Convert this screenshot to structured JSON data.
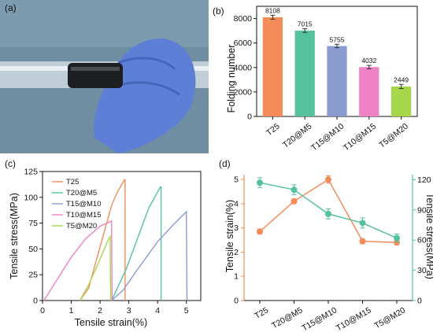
{
  "panels": {
    "a_label": "(a)",
    "b_label": "(b)",
    "c_label": "(c)",
    "d_label": "(d)"
  },
  "photo": {
    "background": "#6f8ea2",
    "glove_color": "#5d7fd6",
    "tube_color": "#cfd9e0",
    "roller_color": "#1d1f22"
  },
  "chart_data": [
    {
      "panel": "b",
      "type": "bar",
      "categories": [
        "T25",
        "T20@M5",
        "T15@M10",
        "T10@M15",
        "T5@M20"
      ],
      "values": [
        8108,
        7015,
        5755,
        4032,
        2449
      ],
      "error": [
        160,
        150,
        140,
        140,
        170
      ],
      "data_labels": [
        "8108",
        "7015",
        "5755",
        "4032",
        "2449"
      ],
      "colors": [
        "#f48c5a",
        "#55c29c",
        "#8a9ccf",
        "#ee82c4",
        "#a6d64a"
      ],
      "xlabel": "",
      "ylabel": "Folding number",
      "ylim": [
        0,
        9000
      ],
      "yticks": [
        "0",
        "2000",
        "4000",
        "6000",
        "8000"
      ],
      "grid": false
    },
    {
      "panel": "c",
      "type": "line",
      "xlabel": "Tensile strain(%)",
      "ylabel": "Tensile stress(MPa)",
      "xlim": [
        0,
        5.5
      ],
      "ylim": [
        0,
        125
      ],
      "xticks": [
        "0",
        "1",
        "2",
        "3",
        "4",
        "5"
      ],
      "yticks": [
        "0",
        "25",
        "50",
        "75",
        "100",
        "125"
      ],
      "legend_position": "top-right",
      "series": [
        {
          "name": "T25",
          "color": "#f48c5a",
          "x": [
            1.3,
            1.6,
            2.0,
            2.4,
            2.6,
            2.85,
            2.87,
            2.87
          ],
          "y": [
            0,
            12,
            52,
            92,
            105,
            117,
            117,
            0
          ]
        },
        {
          "name": "T20@M5",
          "color": "#55c29c",
          "x": [
            2.4,
            2.9,
            3.3,
            3.7,
            4.1,
            4.12,
            4.12
          ],
          "y": [
            0,
            30,
            60,
            90,
            110,
            110,
            0
          ]
        },
        {
          "name": "T15@M10",
          "color": "#8a9ccf",
          "x": [
            2.4,
            2.8,
            3.3,
            4.0,
            4.5,
            5.0,
            5.02
          ],
          "y": [
            0,
            10,
            30,
            57,
            72,
            86,
            0
          ]
        },
        {
          "name": "T10@M15",
          "color": "#ee82c4",
          "x": [
            0.05,
            0.5,
            1.0,
            1.5,
            2.0,
            2.4,
            2.42
          ],
          "y": [
            0,
            20,
            42,
            60,
            72,
            77,
            0
          ]
        },
        {
          "name": "T5@M20",
          "color": "#a6d64a",
          "x": [
            1.3,
            1.6,
            2.0,
            2.3,
            2.35,
            2.37
          ],
          "y": [
            0,
            15,
            40,
            60,
            62,
            0
          ]
        }
      ]
    },
    {
      "panel": "d",
      "type": "line",
      "categories": [
        "T25",
        "T20@M5",
        "T15@M10",
        "T10@M15",
        "T5@M20"
      ],
      "left_axis": {
        "label": "Tensile strain(%)",
        "color": "#f48c5a",
        "ylim": [
          0,
          5.2
        ],
        "yticks": [
          "0",
          "1",
          "2",
          "3",
          "4",
          "5"
        ],
        "values": [
          2.85,
          4.1,
          5.0,
          2.45,
          2.4
        ],
        "error": [
          0.1,
          0.1,
          0.15,
          0.1,
          0.1
        ]
      },
      "right_axis": {
        "label": "Tensile stress(MPa)",
        "color": "#55c29c",
        "ylim": [
          0,
          125
        ],
        "yticks": [
          "0",
          "30",
          "60",
          "90",
          "120"
        ],
        "values": [
          117,
          110,
          86,
          77,
          62
        ],
        "error": [
          5,
          5,
          5,
          5,
          4
        ]
      }
    }
  ]
}
